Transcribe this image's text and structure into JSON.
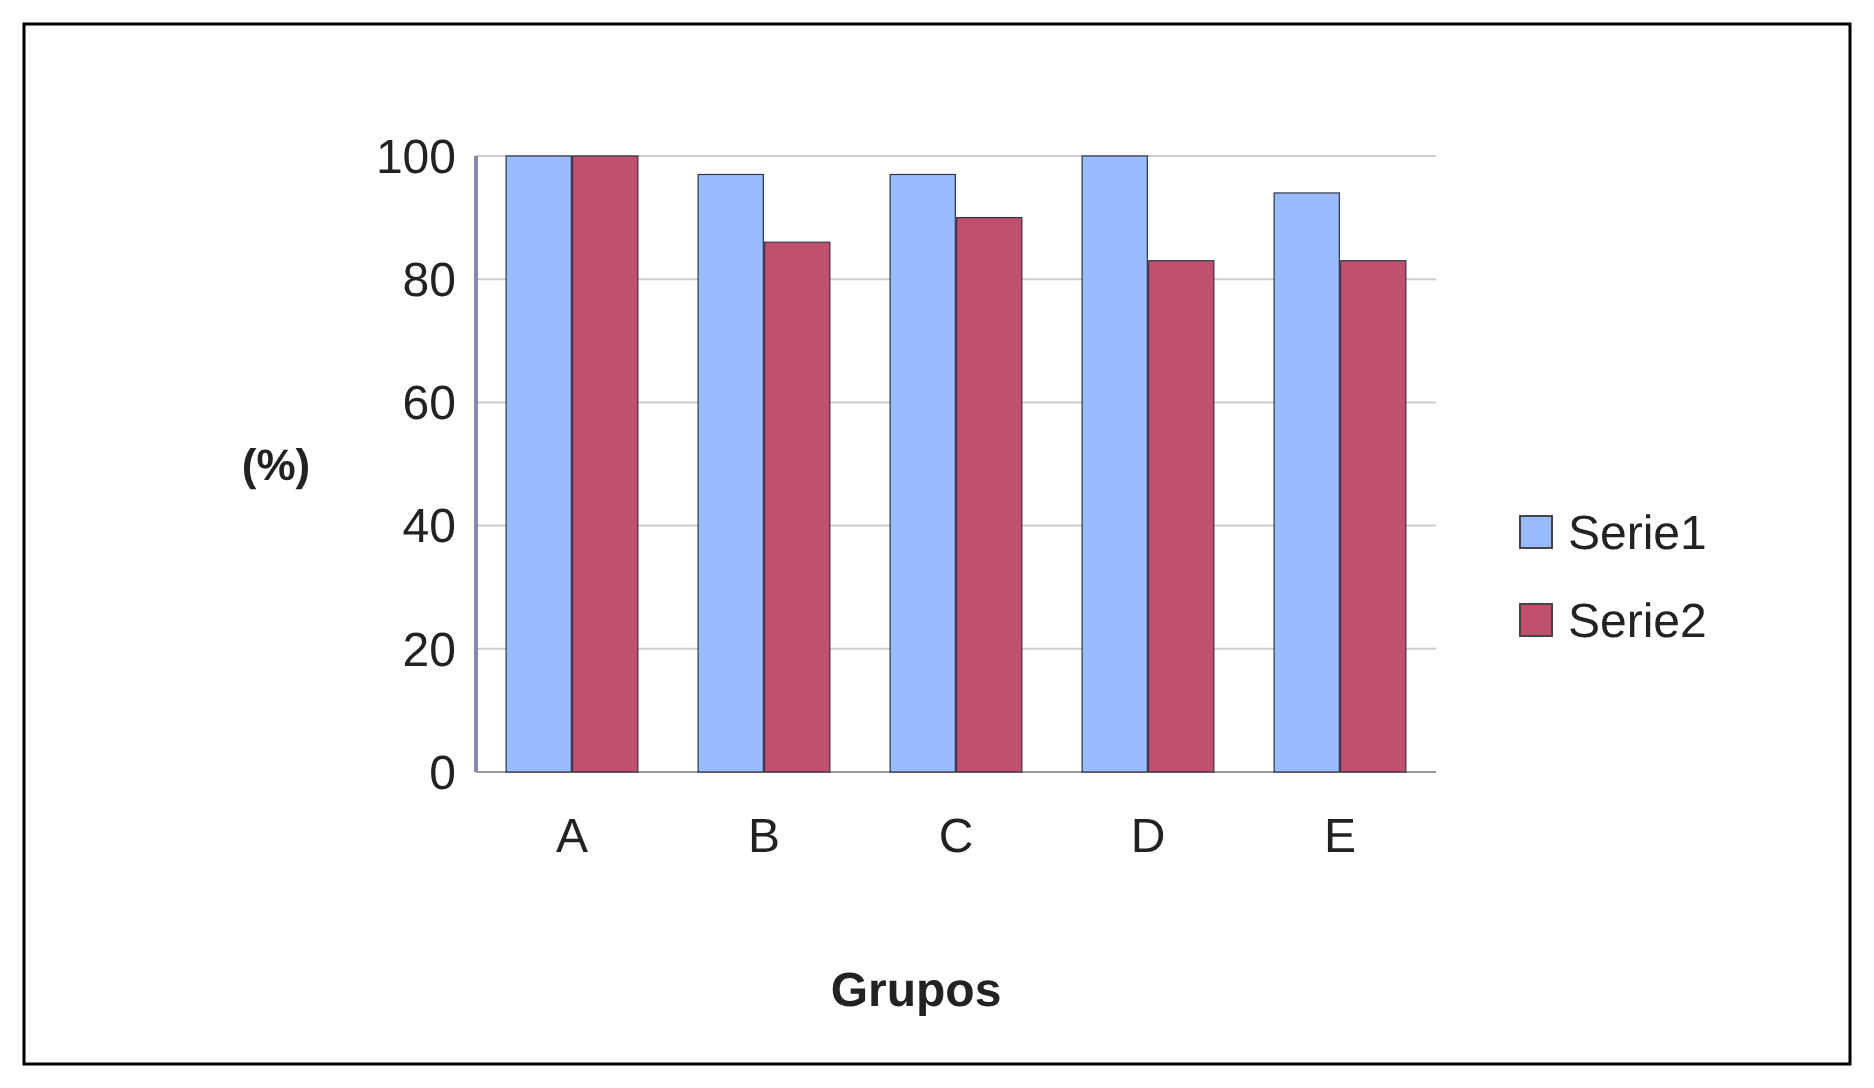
{
  "chart_data": {
    "type": "bar",
    "xlabel": "Grupos",
    "ylabel": "(%)",
    "categories": [
      "A",
      "B",
      "C",
      "D",
      "E"
    ],
    "series": [
      {
        "name": "Serie1",
        "color": "#99bbff",
        "values": [
          100,
          97,
          97,
          100,
          94
        ]
      },
      {
        "name": "Serie2",
        "color": "#c0506e",
        "values": [
          100,
          86,
          90,
          83,
          83
        ]
      }
    ],
    "ylim": [
      0,
      100
    ],
    "yticks": [
      0,
      20,
      40,
      60,
      80,
      100
    ],
    "grid": "y",
    "legend": "right"
  }
}
